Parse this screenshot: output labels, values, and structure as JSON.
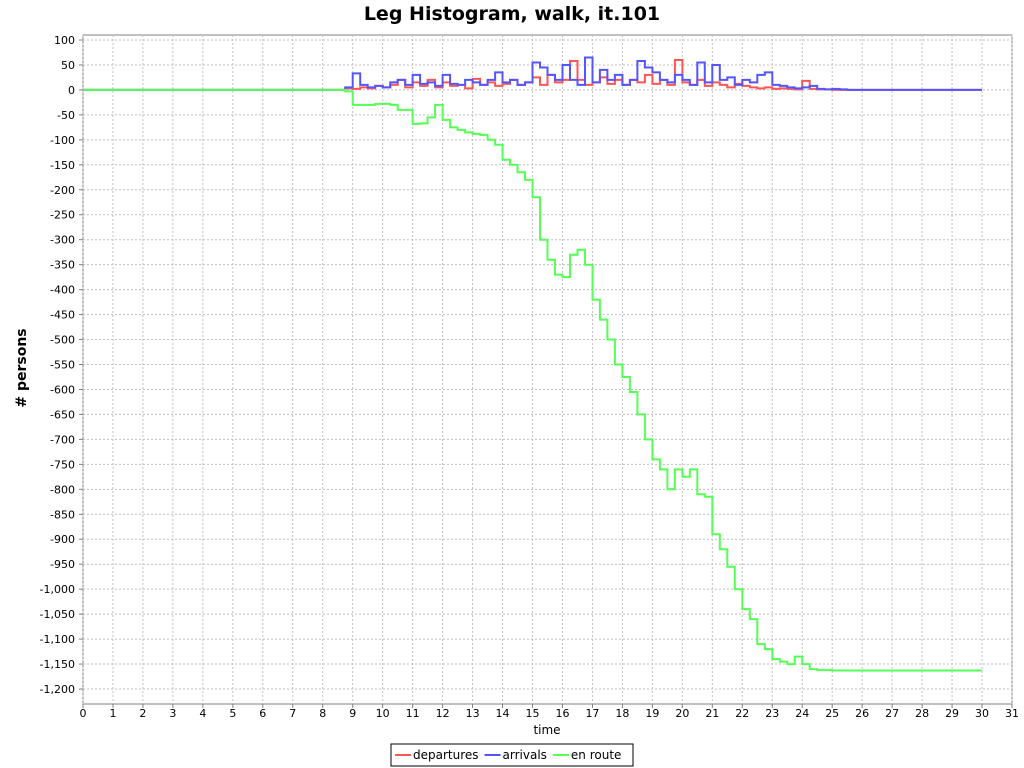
{
  "chart_data": {
    "type": "line",
    "title": "Leg Histogram, walk, it.101",
    "xlabel": "time",
    "ylabel": "# persons",
    "xlim": [
      0,
      31
    ],
    "ylim": [
      -1230,
      110
    ],
    "x_ticks": [
      0,
      1,
      2,
      3,
      4,
      5,
      6,
      7,
      8,
      9,
      10,
      11,
      12,
      13,
      14,
      15,
      16,
      17,
      18,
      19,
      20,
      21,
      22,
      23,
      24,
      25,
      26,
      27,
      28,
      29,
      30,
      31
    ],
    "y_ticks": [
      100,
      50,
      0,
      -50,
      -100,
      -150,
      -200,
      -250,
      -300,
      -350,
      -400,
      -450,
      -500,
      -550,
      -600,
      -650,
      -700,
      -750,
      -800,
      -850,
      -900,
      -950,
      -1000,
      -1050,
      -1100,
      -1150,
      -1200
    ],
    "y_tick_labels": [
      "100",
      "50",
      "0",
      "-50",
      "-100",
      "-150",
      "-200",
      "-250",
      "-300",
      "-350",
      "-400",
      "-450",
      "-500",
      "-550",
      "-600",
      "-650",
      "-700",
      "-750",
      "-800",
      "-850",
      "-900",
      "-950",
      "-1,000",
      "-1,050",
      "-1,100",
      "-1,150",
      "-1,200"
    ],
    "grid": true,
    "legend_position": "bottom",
    "series": [
      {
        "name": "departures",
        "color": "#ff5555",
        "points": [
          [
            0,
            0
          ],
          [
            8.5,
            0
          ],
          [
            8.75,
            3
          ],
          [
            9,
            2
          ],
          [
            9.25,
            5
          ],
          [
            9.5,
            3
          ],
          [
            9.75,
            8
          ],
          [
            10,
            5
          ],
          [
            10.25,
            10
          ],
          [
            10.5,
            20
          ],
          [
            10.75,
            5
          ],
          [
            11,
            15
          ],
          [
            11.25,
            8
          ],
          [
            11.5,
            20
          ],
          [
            11.75,
            5
          ],
          [
            12,
            15
          ],
          [
            12.25,
            8
          ],
          [
            12.5,
            10
          ],
          [
            12.75,
            3
          ],
          [
            13,
            22
          ],
          [
            13.25,
            10
          ],
          [
            13.5,
            15
          ],
          [
            13.75,
            8
          ],
          [
            14,
            12
          ],
          [
            14.25,
            20
          ],
          [
            14.5,
            10
          ],
          [
            14.75,
            15
          ],
          [
            15,
            25
          ],
          [
            15.25,
            10
          ],
          [
            15.5,
            30
          ],
          [
            15.75,
            15
          ],
          [
            16,
            20
          ],
          [
            16.25,
            58
          ],
          [
            16.5,
            20
          ],
          [
            16.75,
            10
          ],
          [
            17,
            15
          ],
          [
            17.25,
            25
          ],
          [
            17.5,
            12
          ],
          [
            17.75,
            20
          ],
          [
            18,
            10
          ],
          [
            18.25,
            20
          ],
          [
            18.5,
            15
          ],
          [
            18.75,
            30
          ],
          [
            19,
            12
          ],
          [
            19.25,
            20
          ],
          [
            19.5,
            10
          ],
          [
            19.75,
            60
          ],
          [
            20,
            15
          ],
          [
            20.25,
            10
          ],
          [
            20.5,
            20
          ],
          [
            20.75,
            8
          ],
          [
            21,
            15
          ],
          [
            21.25,
            10
          ],
          [
            21.5,
            5
          ],
          [
            21.75,
            12
          ],
          [
            22,
            8
          ],
          [
            22.25,
            5
          ],
          [
            22.5,
            3
          ],
          [
            22.75,
            5
          ],
          [
            23,
            2
          ],
          [
            23.25,
            3
          ],
          [
            23.5,
            2
          ],
          [
            23.75,
            1
          ],
          [
            24,
            18
          ],
          [
            24.25,
            2
          ],
          [
            24.5,
            1
          ],
          [
            25,
            0
          ],
          [
            30,
            0
          ]
        ]
      },
      {
        "name": "arrivals",
        "color": "#5555ff",
        "points": [
          [
            0,
            0
          ],
          [
            8.5,
            0
          ],
          [
            8.75,
            5
          ],
          [
            9,
            33
          ],
          [
            9.25,
            10
          ],
          [
            9.5,
            5
          ],
          [
            9.75,
            8
          ],
          [
            10,
            5
          ],
          [
            10.25,
            15
          ],
          [
            10.5,
            20
          ],
          [
            10.75,
            10
          ],
          [
            11,
            30
          ],
          [
            11.25,
            12
          ],
          [
            11.5,
            15
          ],
          [
            11.75,
            8
          ],
          [
            12,
            30
          ],
          [
            12.25,
            12
          ],
          [
            12.5,
            10
          ],
          [
            12.75,
            20
          ],
          [
            13,
            15
          ],
          [
            13.25,
            10
          ],
          [
            13.5,
            20
          ],
          [
            13.75,
            35
          ],
          [
            14,
            15
          ],
          [
            14.25,
            20
          ],
          [
            14.5,
            10
          ],
          [
            14.75,
            15
          ],
          [
            15,
            55
          ],
          [
            15.25,
            45
          ],
          [
            15.5,
            30
          ],
          [
            15.75,
            20
          ],
          [
            16,
            50
          ],
          [
            16.25,
            20
          ],
          [
            16.5,
            10
          ],
          [
            16.75,
            65
          ],
          [
            17,
            15
          ],
          [
            17.25,
            40
          ],
          [
            17.5,
            20
          ],
          [
            17.75,
            30
          ],
          [
            18,
            10
          ],
          [
            18.25,
            20
          ],
          [
            18.5,
            58
          ],
          [
            18.75,
            45
          ],
          [
            19,
            35
          ],
          [
            19.25,
            20
          ],
          [
            19.5,
            15
          ],
          [
            19.75,
            30
          ],
          [
            20,
            20
          ],
          [
            20.25,
            10
          ],
          [
            20.5,
            55
          ],
          [
            20.75,
            15
          ],
          [
            21,
            50
          ],
          [
            21.25,
            20
          ],
          [
            21.5,
            25
          ],
          [
            21.75,
            10
          ],
          [
            22,
            20
          ],
          [
            22.25,
            15
          ],
          [
            22.5,
            30
          ],
          [
            22.75,
            35
          ],
          [
            23,
            10
          ],
          [
            23.25,
            8
          ],
          [
            23.5,
            5
          ],
          [
            23.75,
            3
          ],
          [
            24,
            5
          ],
          [
            24.25,
            8
          ],
          [
            24.5,
            2
          ],
          [
            24.75,
            1
          ],
          [
            25,
            2
          ],
          [
            25.25,
            1
          ],
          [
            25.5,
            0
          ],
          [
            30,
            0
          ]
        ]
      },
      {
        "name": "en route",
        "color": "#55ff55",
        "points": [
          [
            0,
            0
          ],
          [
            8.5,
            0
          ],
          [
            8.75,
            -3
          ],
          [
            9,
            -30
          ],
          [
            9.5,
            -30
          ],
          [
            9.75,
            -28
          ],
          [
            10,
            -28
          ],
          [
            10.25,
            -30
          ],
          [
            10.5,
            -40
          ],
          [
            10.75,
            -40
          ],
          [
            11,
            -68
          ],
          [
            11.25,
            -67
          ],
          [
            11.5,
            -55
          ],
          [
            11.75,
            -30
          ],
          [
            12,
            -60
          ],
          [
            12.25,
            -75
          ],
          [
            12.5,
            -80
          ],
          [
            12.75,
            -85
          ],
          [
            13,
            -88
          ],
          [
            13.25,
            -90
          ],
          [
            13.5,
            -100
          ],
          [
            13.75,
            -110
          ],
          [
            14,
            -140
          ],
          [
            14.25,
            -150
          ],
          [
            14.5,
            -165
          ],
          [
            14.75,
            -180
          ],
          [
            15,
            -215
          ],
          [
            15.25,
            -300
          ],
          [
            15.5,
            -340
          ],
          [
            15.75,
            -370
          ],
          [
            16,
            -375
          ],
          [
            16.25,
            -330
          ],
          [
            16.5,
            -320
          ],
          [
            16.75,
            -350
          ],
          [
            17,
            -420
          ],
          [
            17.25,
            -460
          ],
          [
            17.5,
            -500
          ],
          [
            17.75,
            -550
          ],
          [
            18,
            -575
          ],
          [
            18.25,
            -605
          ],
          [
            18.5,
            -650
          ],
          [
            18.75,
            -700
          ],
          [
            19,
            -740
          ],
          [
            19.25,
            -760
          ],
          [
            19.5,
            -800
          ],
          [
            19.75,
            -760
          ],
          [
            20,
            -775
          ],
          [
            20.25,
            -760
          ],
          [
            20.5,
            -810
          ],
          [
            20.75,
            -815
          ],
          [
            21,
            -890
          ],
          [
            21.25,
            -920
          ],
          [
            21.5,
            -955
          ],
          [
            21.75,
            -1000
          ],
          [
            22,
            -1040
          ],
          [
            22.25,
            -1060
          ],
          [
            22.5,
            -1110
          ],
          [
            22.75,
            -1120
          ],
          [
            23,
            -1140
          ],
          [
            23.25,
            -1145
          ],
          [
            23.5,
            -1150
          ],
          [
            23.75,
            -1135
          ],
          [
            24,
            -1150
          ],
          [
            24.25,
            -1160
          ],
          [
            24.5,
            -1162
          ],
          [
            25,
            -1163
          ],
          [
            30,
            -1163
          ]
        ]
      }
    ]
  }
}
